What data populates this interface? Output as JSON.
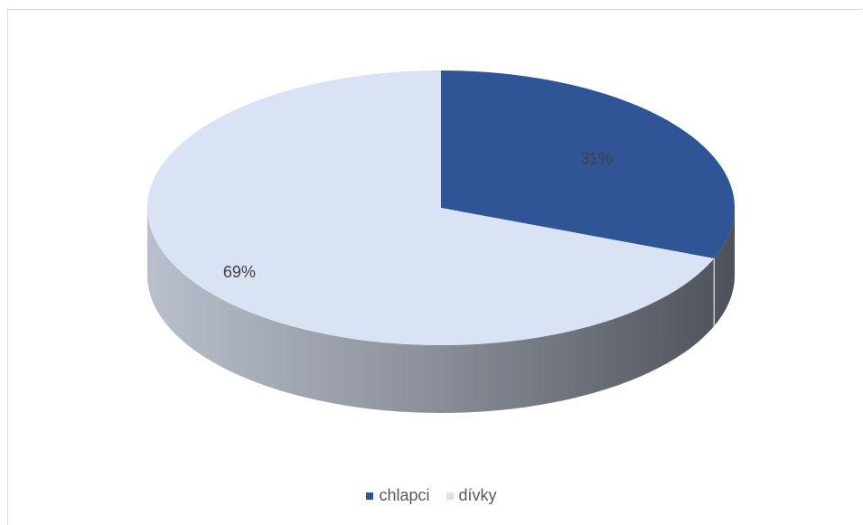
{
  "chart_data": {
    "type": "pie",
    "style": "3d",
    "categories": [
      "chlapci",
      "dívky"
    ],
    "values": [
      31,
      69
    ],
    "data_labels": [
      "31%",
      "69%"
    ],
    "colors": [
      "#2f5597",
      "#dae3f3"
    ],
    "legend": {
      "placement": "bottom",
      "entries": [
        "chlapci",
        "dívky"
      ]
    }
  }
}
